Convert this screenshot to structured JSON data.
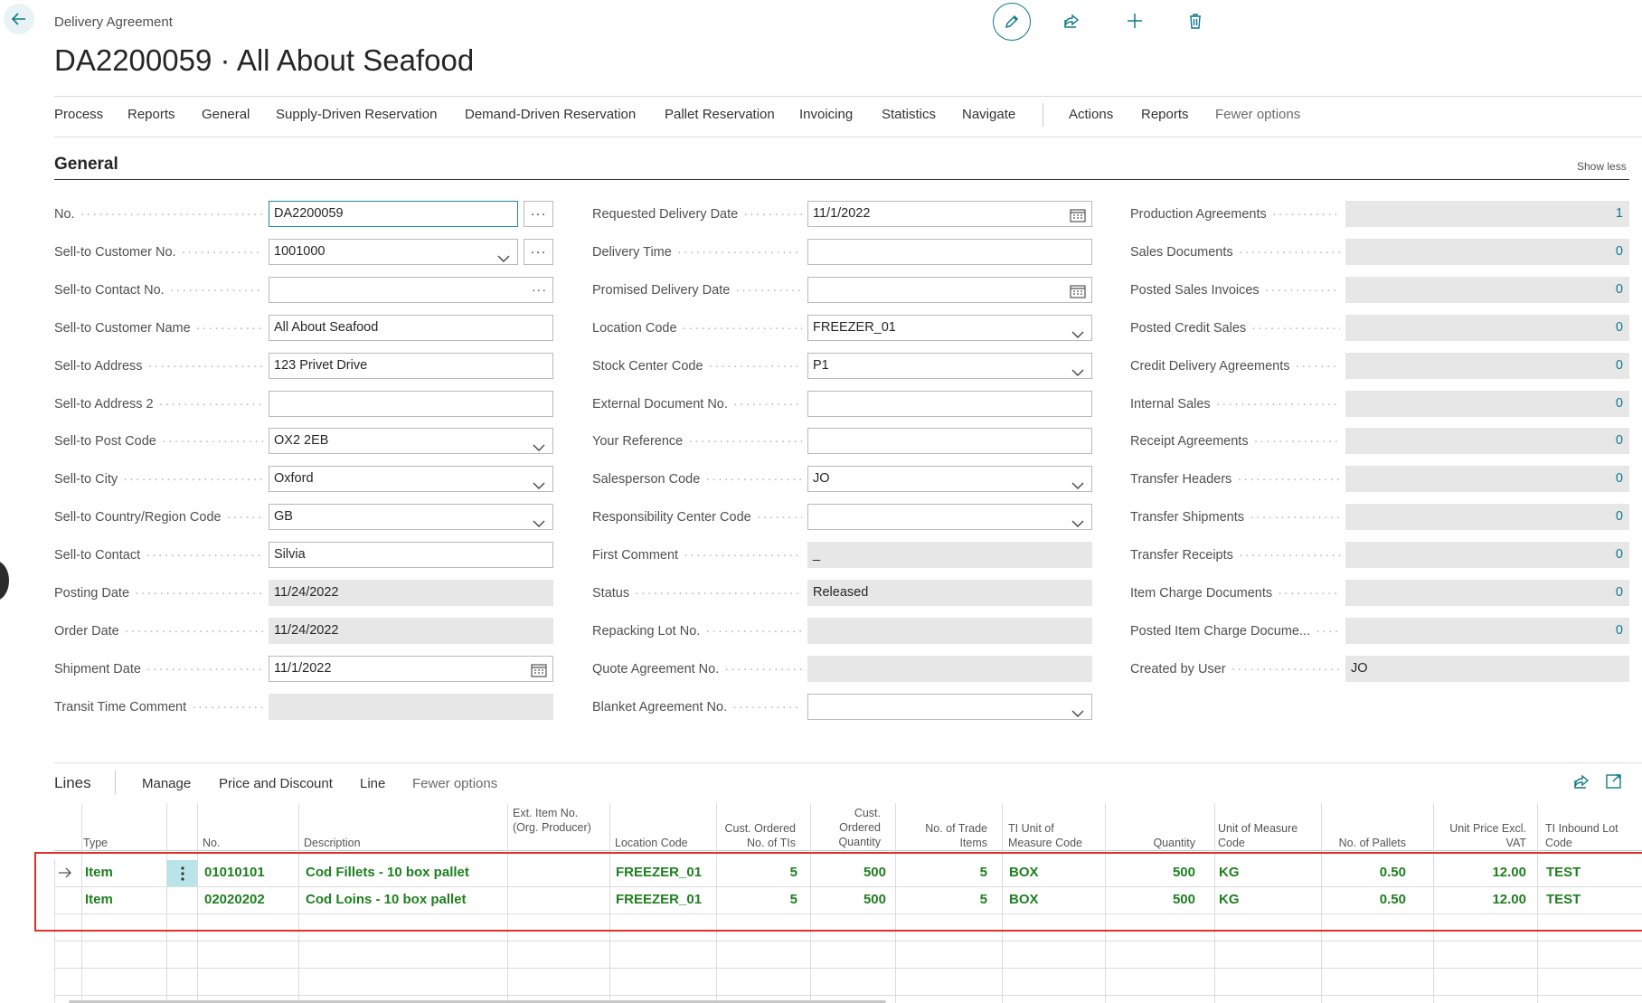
{
  "header": {
    "caption": "Delivery Agreement",
    "title": "DA2200059 · All About Seafood",
    "actions": [
      "pencil-icon",
      "share-icon",
      "plus-icon",
      "trash-icon"
    ]
  },
  "menu": {
    "items": [
      "Process",
      "Reports",
      "General",
      "Supply-Driven Reservation",
      "Demand-Driven Reservation",
      "Pallet Reservation",
      "Invoicing",
      "Statistics",
      "Navigate"
    ],
    "items2": [
      "Actions",
      "Reports"
    ],
    "fewer": "Fewer options"
  },
  "general": {
    "title": "General",
    "show_less": "Show less",
    "col1": [
      {
        "label": "No.",
        "value": "DA2200059"
      },
      {
        "label": "Sell-to Customer No.",
        "value": "1001000"
      },
      {
        "label": "Sell-to Contact No.",
        "value": ""
      },
      {
        "label": "Sell-to Customer Name",
        "value": "All About Seafood"
      },
      {
        "label": "Sell-to Address",
        "value": "123 Privet Drive"
      },
      {
        "label": "Sell-to Address 2",
        "value": ""
      },
      {
        "label": "Sell-to Post Code",
        "value": "OX2 2EB"
      },
      {
        "label": "Sell-to City",
        "value": "Oxford"
      },
      {
        "label": "Sell-to Country/Region Code",
        "value": "GB"
      },
      {
        "label": "Sell-to Contact",
        "value": "Silvia"
      },
      {
        "label": "Posting Date",
        "value": "11/24/2022"
      },
      {
        "label": "Order Date",
        "value": "11/24/2022"
      },
      {
        "label": "Shipment Date",
        "value": "11/1/2022"
      },
      {
        "label": "Transit Time Comment",
        "value": ""
      }
    ],
    "col2": [
      {
        "label": "Requested Delivery Date",
        "value": "11/1/2022"
      },
      {
        "label": "Delivery Time",
        "value": ""
      },
      {
        "label": "Promised Delivery Date",
        "value": ""
      },
      {
        "label": "Location Code",
        "value": "FREEZER_01"
      },
      {
        "label": "Stock Center Code",
        "value": "P1"
      },
      {
        "label": "External Document No.",
        "value": ""
      },
      {
        "label": "Your Reference",
        "value": ""
      },
      {
        "label": "Salesperson Code",
        "value": "JO"
      },
      {
        "label": "Responsibility Center Code",
        "value": ""
      },
      {
        "label": "First Comment",
        "value": "_"
      },
      {
        "label": "Status",
        "value": "Released"
      },
      {
        "label": "Repacking Lot No.",
        "value": ""
      },
      {
        "label": "Quote Agreement No.",
        "value": ""
      },
      {
        "label": "Blanket Agreement No.",
        "value": ""
      }
    ],
    "col3": [
      {
        "label": "Production Agreements",
        "value": "1"
      },
      {
        "label": "Sales Documents",
        "value": "0"
      },
      {
        "label": "Posted Sales Invoices",
        "value": "0"
      },
      {
        "label": "Posted Credit Sales",
        "value": "0"
      },
      {
        "label": "Credit Delivery Agreements",
        "value": "0"
      },
      {
        "label": "Internal Sales",
        "value": "0"
      },
      {
        "label": "Receipt Agreements",
        "value": "0"
      },
      {
        "label": "Transfer Headers",
        "value": "0"
      },
      {
        "label": "Transfer Shipments",
        "value": "0"
      },
      {
        "label": "Transfer Receipts",
        "value": "0"
      },
      {
        "label": "Item Charge Documents",
        "value": "0"
      },
      {
        "label": "Posted Item Charge Docume...",
        "value": "0"
      },
      {
        "label": "Created by User",
        "value": "JO"
      }
    ]
  },
  "lines": {
    "title": "Lines",
    "menu": [
      "Manage",
      "Price and Discount",
      "Line",
      "Fewer options"
    ],
    "columns": [
      "Type",
      "No.",
      "Description",
      "Ext. Item No. (Org. Producer)",
      "Location Code",
      "Cust. Ordered No. of TIs",
      "Cust. Ordered Quantity",
      "No. of Trade Items",
      "TI Unit of Measure Code",
      "Quantity",
      "Unit of Measure Code",
      "No. of Pallets",
      "Unit Price Excl. VAT",
      "TI Inbound Lot Code"
    ],
    "rows": [
      {
        "type": "Item",
        "no": "01010101",
        "description": "Cod Fillets - 10 box pallet",
        "ext": "",
        "location": "FREEZER_01",
        "cust_tis": "5",
        "cust_qty": "500",
        "trade_items": "5",
        "ti_uom": "BOX",
        "quantity": "500",
        "uom": "KG",
        "pallets": "0.50",
        "unit_price": "12.00",
        "lot": "TEST"
      },
      {
        "type": "Item",
        "no": "02020202",
        "description": "Cod Loins - 10 box pallet",
        "ext": "",
        "location": "FREEZER_01",
        "cust_tis": "5",
        "cust_qty": "500",
        "trade_items": "5",
        "ti_uom": "BOX",
        "quantity": "500",
        "uom": "KG",
        "pallets": "0.50",
        "unit_price": "12.00",
        "lot": "TEST"
      }
    ]
  },
  "colors": {
    "accent": "#0e7a89",
    "line_text": "#1f7f1f",
    "highlight_border": "#e0302b"
  }
}
